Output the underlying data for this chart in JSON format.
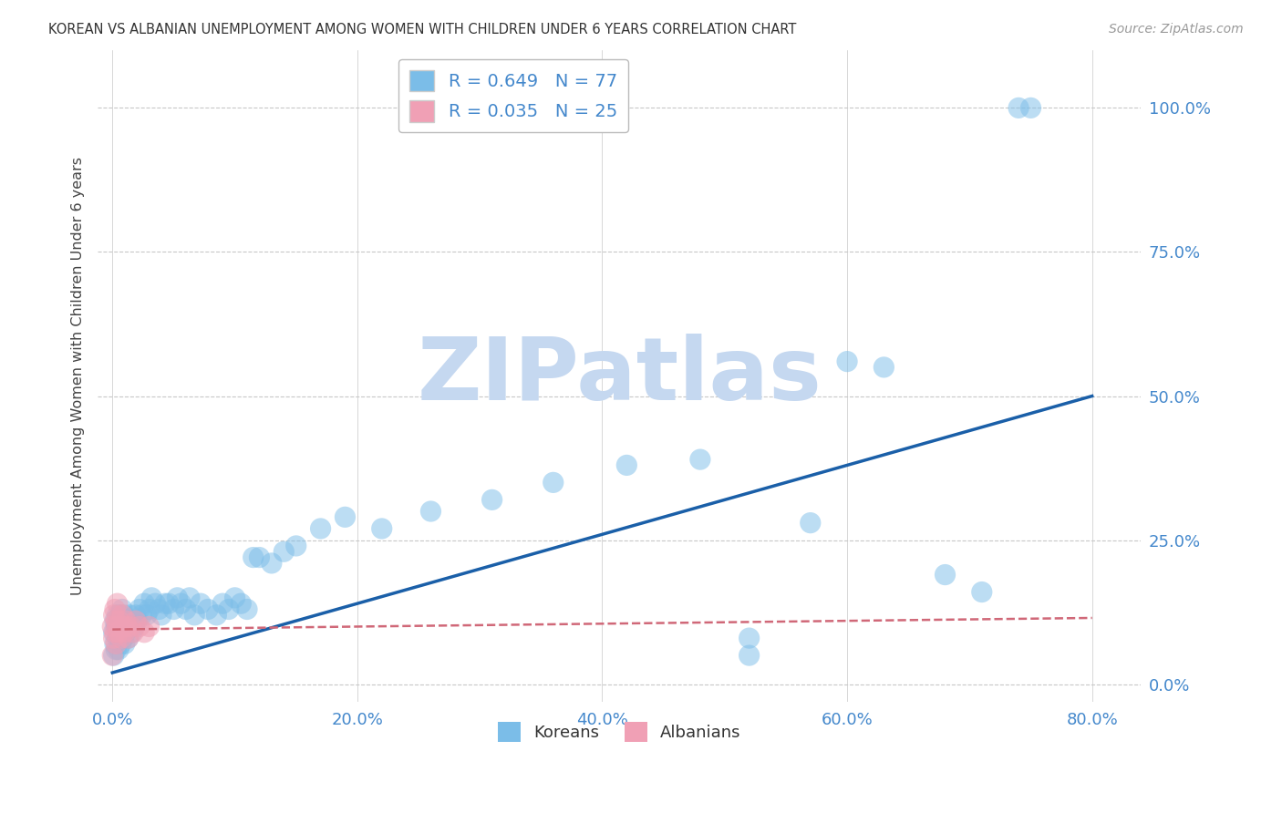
{
  "title": "KOREAN VS ALBANIAN UNEMPLOYMENT AMONG WOMEN WITH CHILDREN UNDER 6 YEARS CORRELATION CHART",
  "source": "Source: ZipAtlas.com",
  "ylabel": "Unemployment Among Women with Children Under 6 years",
  "xlabel_ticks": [
    "0.0%",
    "20.0%",
    "40.0%",
    "60.0%",
    "80.0%"
  ],
  "xlabel_vals": [
    0.0,
    0.2,
    0.4,
    0.6,
    0.8
  ],
  "ylabel_ticks": [
    "0.0%",
    "25.0%",
    "50.0%",
    "75.0%",
    "100.0%"
  ],
  "ylabel_vals": [
    0.0,
    0.25,
    0.5,
    0.75,
    1.0
  ],
  "xlim": [
    -0.012,
    0.84
  ],
  "ylim": [
    -0.03,
    1.1
  ],
  "korean_R": 0.649,
  "korean_N": 77,
  "albanian_R": 0.035,
  "albanian_N": 25,
  "korean_color": "#7bbde8",
  "albanian_color": "#f0a0b5",
  "korean_line_color": "#1a5fa8",
  "albanian_line_color": "#d06878",
  "watermark": "ZIPatlas",
  "watermark_color": "#c5d8f0",
  "legend_korean_label": "Koreans",
  "legend_albanian_label": "Albanians",
  "background_color": "#ffffff",
  "grid_color": "#c8c8c8",
  "title_color": "#333333",
  "axis_label_color": "#4488cc",
  "korean_x": [
    0.001,
    0.001,
    0.002,
    0.002,
    0.003,
    0.003,
    0.004,
    0.004,
    0.005,
    0.005,
    0.006,
    0.006,
    0.007,
    0.007,
    0.008,
    0.008,
    0.009,
    0.009,
    0.01,
    0.01,
    0.011,
    0.012,
    0.013,
    0.014,
    0.015,
    0.016,
    0.017,
    0.018,
    0.019,
    0.02,
    0.022,
    0.024,
    0.026,
    0.028,
    0.03,
    0.032,
    0.035,
    0.038,
    0.04,
    0.043,
    0.046,
    0.05,
    0.053,
    0.056,
    0.06,
    0.063,
    0.067,
    0.072,
    0.078,
    0.085,
    0.09,
    0.095,
    0.1,
    0.105,
    0.11,
    0.115,
    0.12,
    0.13,
    0.14,
    0.15,
    0.17,
    0.19,
    0.22,
    0.26,
    0.31,
    0.36,
    0.42,
    0.48,
    0.52,
    0.57,
    0.6,
    0.63,
    0.68,
    0.71,
    0.74,
    0.75,
    0.52
  ],
  "korean_y": [
    0.05,
    0.09,
    0.07,
    0.11,
    0.06,
    0.1,
    0.08,
    0.12,
    0.06,
    0.1,
    0.08,
    0.12,
    0.07,
    0.11,
    0.09,
    0.13,
    0.08,
    0.12,
    0.07,
    0.11,
    0.09,
    0.1,
    0.08,
    0.12,
    0.1,
    0.09,
    0.11,
    0.1,
    0.12,
    0.11,
    0.13,
    0.12,
    0.14,
    0.12,
    0.13,
    0.15,
    0.14,
    0.13,
    0.12,
    0.14,
    0.14,
    0.13,
    0.15,
    0.14,
    0.13,
    0.15,
    0.12,
    0.14,
    0.13,
    0.12,
    0.14,
    0.13,
    0.15,
    0.14,
    0.13,
    0.22,
    0.22,
    0.21,
    0.23,
    0.24,
    0.27,
    0.29,
    0.27,
    0.3,
    0.32,
    0.35,
    0.38,
    0.39,
    0.08,
    0.28,
    0.56,
    0.55,
    0.19,
    0.16,
    1.0,
    1.0,
    0.05
  ],
  "albanian_x": [
    0.0,
    0.0,
    0.001,
    0.001,
    0.002,
    0.002,
    0.003,
    0.003,
    0.004,
    0.004,
    0.005,
    0.006,
    0.007,
    0.008,
    0.009,
    0.01,
    0.011,
    0.012,
    0.013,
    0.015,
    0.017,
    0.019,
    0.022,
    0.026,
    0.03
  ],
  "albanian_y": [
    0.05,
    0.1,
    0.08,
    0.12,
    0.09,
    0.13,
    0.07,
    0.11,
    0.1,
    0.14,
    0.09,
    0.11,
    0.08,
    0.12,
    0.1,
    0.09,
    0.11,
    0.1,
    0.08,
    0.1,
    0.09,
    0.11,
    0.1,
    0.09,
    0.1
  ],
  "korean_line_x0": 0.0,
  "korean_line_y0": 0.02,
  "korean_line_x1": 0.8,
  "korean_line_y1": 0.5,
  "albanian_line_x0": 0.0,
  "albanian_line_y0": 0.095,
  "albanian_line_x1": 0.8,
  "albanian_line_y1": 0.115
}
